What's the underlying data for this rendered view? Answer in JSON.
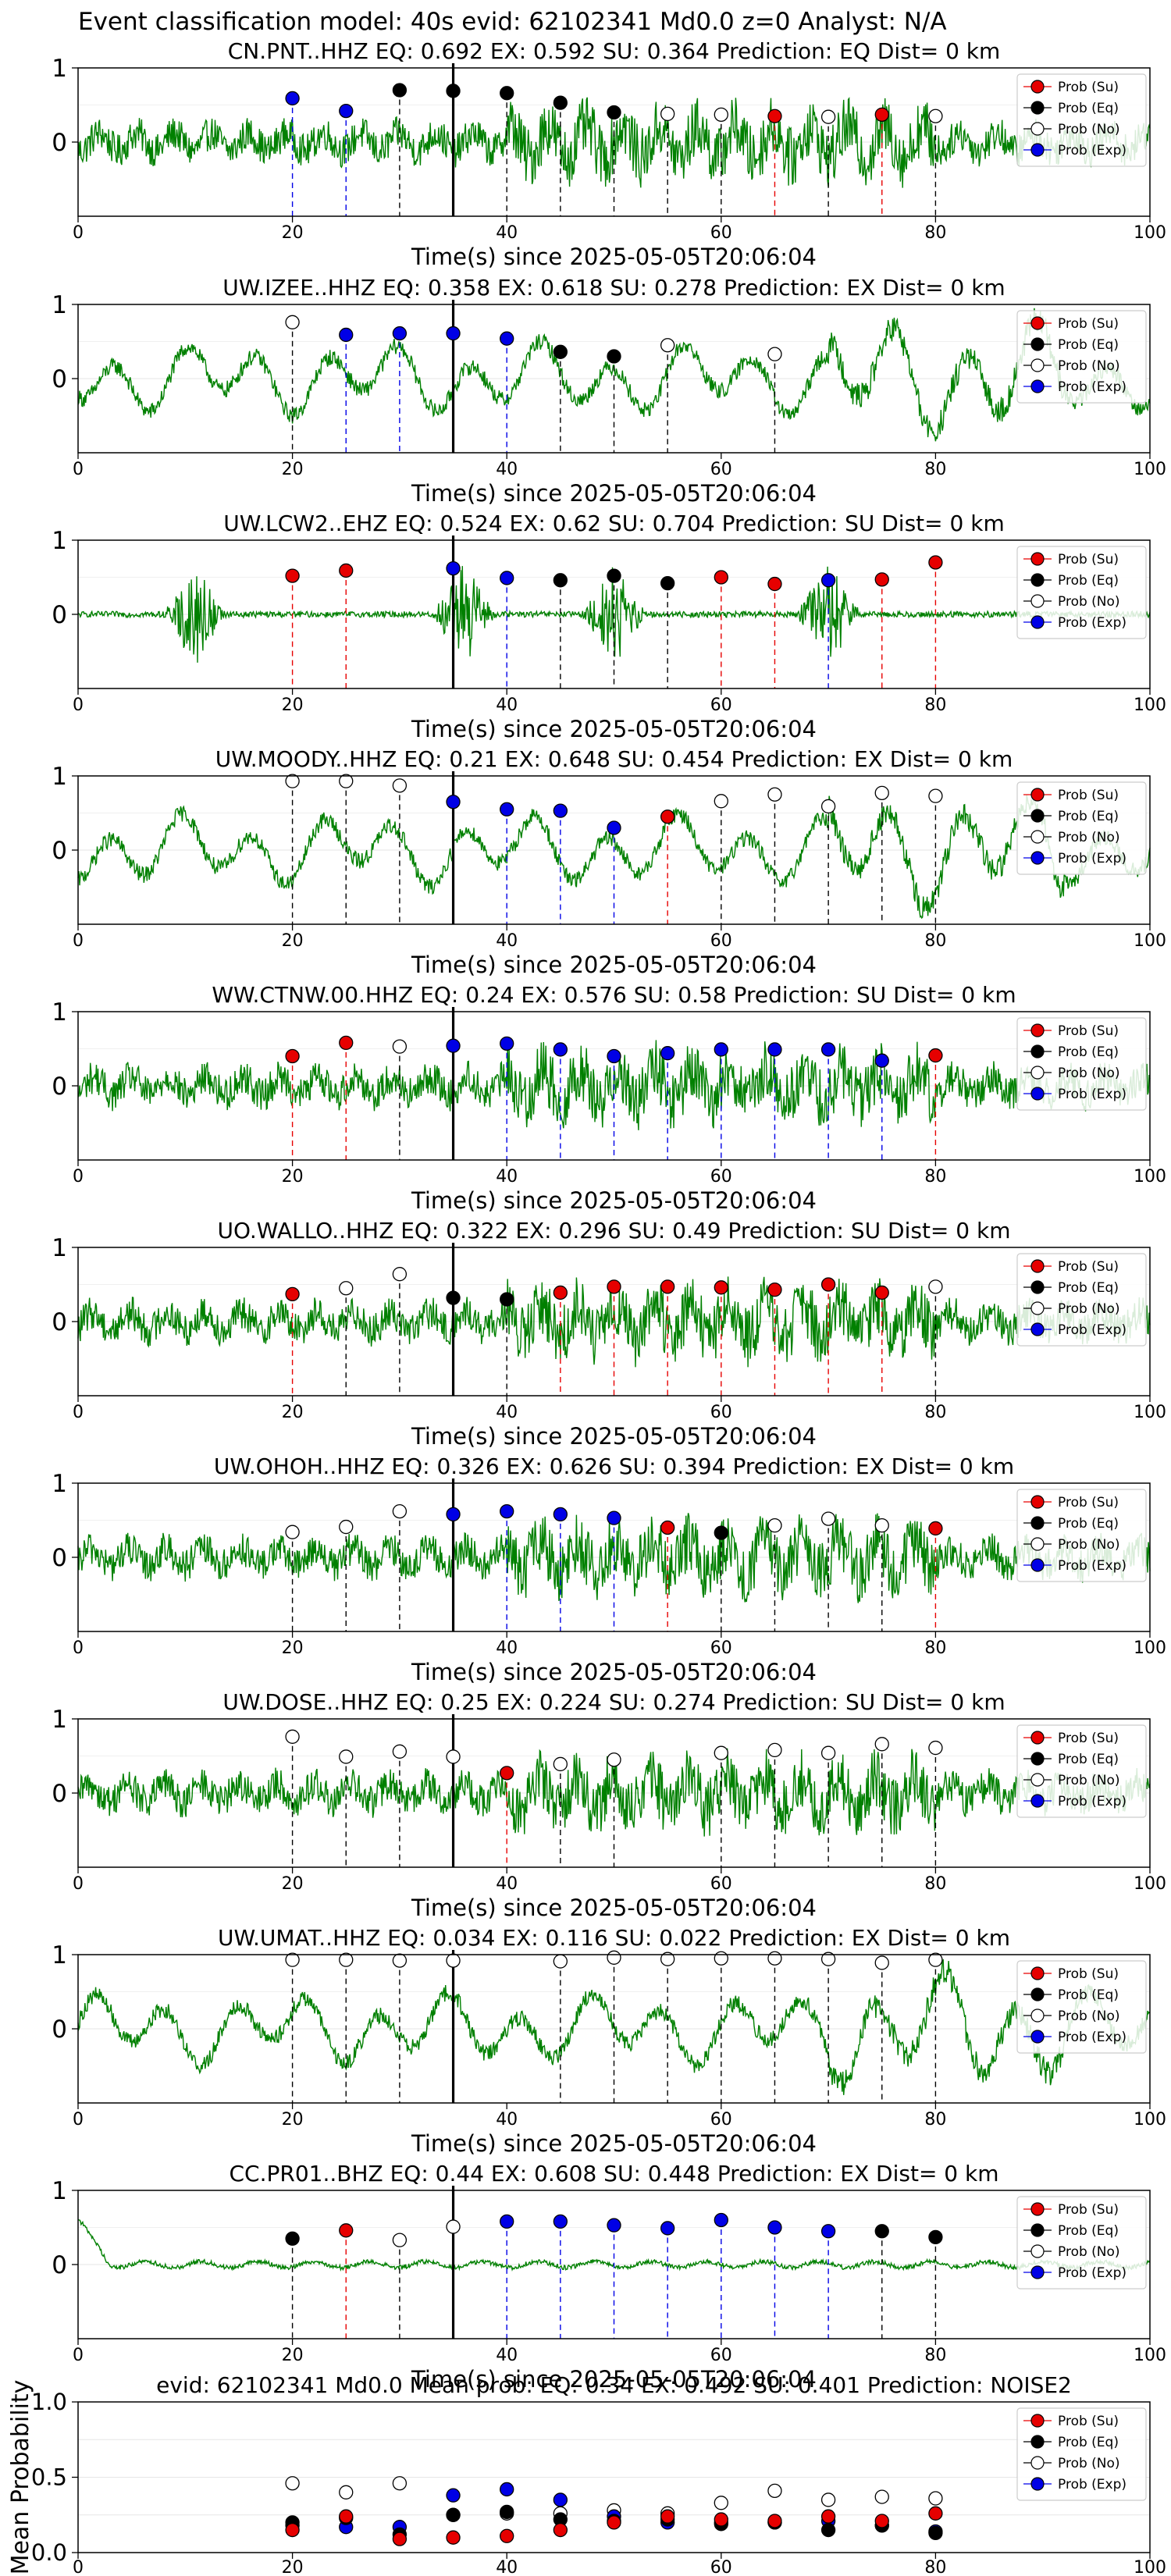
{
  "figure_title": "Event classification model: 40s evid: 62102341 Md0.0 z=0 Analyst: N/A",
  "colors": {
    "waveform": "#008000",
    "su": "#e60000",
    "eq": "#000000",
    "no": "#ffffff",
    "exp": "#0000e6",
    "grid": "#e6e6e6"
  },
  "legend_labels": {
    "su": "Prob (Su)",
    "eq": "Prob (Eq)",
    "no": "Prob (No)",
    "exp": "Prob (Exp)"
  },
  "chart_data": [
    {
      "type": "scatter",
      "title": "CN.PNT..HHZ   EQ: 0.692  EX: 0.592  SU: 0.364   Prediction: EQ    Dist= 0 km",
      "xlabel": "Time(s) since 2025-05-05T20:06:04",
      "xlim": [
        0,
        100
      ],
      "ylim": [
        -1,
        1
      ],
      "xticks": [
        "0",
        "20",
        "40",
        "60",
        "80",
        "100"
      ],
      "yticks": [
        "1",
        "0"
      ],
      "legend": "top-right",
      "trace": "noisy",
      "event_line_x": 35,
      "points": [
        {
          "x": 20,
          "y": 0.59,
          "cls": "exp"
        },
        {
          "x": 25,
          "y": 0.42,
          "cls": "exp"
        },
        {
          "x": 30,
          "y": 0.7,
          "cls": "eq"
        },
        {
          "x": 35,
          "y": 0.69,
          "cls": "eq"
        },
        {
          "x": 40,
          "y": 0.66,
          "cls": "eq"
        },
        {
          "x": 45,
          "y": 0.53,
          "cls": "eq"
        },
        {
          "x": 50,
          "y": 0.4,
          "cls": "eq"
        },
        {
          "x": 55,
          "y": 0.38,
          "cls": "no"
        },
        {
          "x": 60,
          "y": 0.37,
          "cls": "no"
        },
        {
          "x": 65,
          "y": 0.35,
          "cls": "su"
        },
        {
          "x": 70,
          "y": 0.34,
          "cls": "no"
        },
        {
          "x": 75,
          "y": 0.37,
          "cls": "su"
        },
        {
          "x": 80,
          "y": 0.35,
          "cls": "no"
        }
      ]
    },
    {
      "type": "scatter",
      "title": "UW.IZEE..HHZ   EQ: 0.358  EX: 0.618  SU: 0.278   Prediction: EX    Dist= 0 km",
      "xlabel": "Time(s) since 2025-05-05T20:06:04",
      "xlim": [
        0,
        100
      ],
      "ylim": [
        -1,
        1
      ],
      "xticks": [
        "0",
        "20",
        "40",
        "60",
        "80",
        "100"
      ],
      "yticks": [
        "1",
        "0"
      ],
      "legend": "top-right",
      "trace": "wavy",
      "event_line_x": 35,
      "points": [
        {
          "x": 20,
          "y": 0.76,
          "cls": "no"
        },
        {
          "x": 25,
          "y": 0.59,
          "cls": "exp"
        },
        {
          "x": 30,
          "y": 0.61,
          "cls": "exp"
        },
        {
          "x": 35,
          "y": 0.61,
          "cls": "exp"
        },
        {
          "x": 40,
          "y": 0.54,
          "cls": "exp"
        },
        {
          "x": 45,
          "y": 0.36,
          "cls": "eq"
        },
        {
          "x": 50,
          "y": 0.3,
          "cls": "eq"
        },
        {
          "x": 55,
          "y": 0.45,
          "cls": "no"
        },
        {
          "x": 65,
          "y": 0.33,
          "cls": "no"
        }
      ]
    },
    {
      "type": "scatter",
      "title": "UW.LCW2..EHZ   EQ: 0.524  EX: 0.62  SU: 0.704   Prediction: SU    Dist= 0 km",
      "xlabel": "Time(s) since 2025-05-05T20:06:04",
      "xlim": [
        0,
        100
      ],
      "ylim": [
        -1,
        1
      ],
      "xticks": [
        "0",
        "20",
        "40",
        "60",
        "80",
        "100"
      ],
      "yticks": [
        "1",
        "0"
      ],
      "legend": "top-right",
      "trace": "burst",
      "event_line_x": 35,
      "points": [
        {
          "x": 20,
          "y": 0.52,
          "cls": "su"
        },
        {
          "x": 25,
          "y": 0.59,
          "cls": "su"
        },
        {
          "x": 35,
          "y": 0.62,
          "cls": "exp"
        },
        {
          "x": 40,
          "y": 0.49,
          "cls": "exp"
        },
        {
          "x": 45,
          "y": 0.46,
          "cls": "eq"
        },
        {
          "x": 50,
          "y": 0.52,
          "cls": "eq"
        },
        {
          "x": 55,
          "y": 0.42,
          "cls": "eq"
        },
        {
          "x": 60,
          "y": 0.5,
          "cls": "su"
        },
        {
          "x": 65,
          "y": 0.41,
          "cls": "su"
        },
        {
          "x": 70,
          "y": 0.46,
          "cls": "exp"
        },
        {
          "x": 75,
          "y": 0.47,
          "cls": "su"
        },
        {
          "x": 80,
          "y": 0.7,
          "cls": "su"
        }
      ]
    },
    {
      "type": "scatter",
      "title": "UW.MOODY..HHZ   EQ: 0.21  EX: 0.648  SU: 0.454   Prediction: EX    Dist= 0 km",
      "xlabel": "Time(s) since 2025-05-05T20:06:04",
      "xlim": [
        0,
        100
      ],
      "ylim": [
        -1,
        1
      ],
      "xticks": [
        "0",
        "20",
        "40",
        "60",
        "80",
        "100"
      ],
      "yticks": [
        "1",
        "0"
      ],
      "legend": "top-right",
      "trace": "wavy",
      "event_line_x": 35,
      "points": [
        {
          "x": 20,
          "y": 0.93,
          "cls": "no"
        },
        {
          "x": 25,
          "y": 0.93,
          "cls": "no"
        },
        {
          "x": 30,
          "y": 0.87,
          "cls": "no"
        },
        {
          "x": 35,
          "y": 0.65,
          "cls": "exp"
        },
        {
          "x": 40,
          "y": 0.55,
          "cls": "exp"
        },
        {
          "x": 45,
          "y": 0.53,
          "cls": "exp"
        },
        {
          "x": 50,
          "y": 0.3,
          "cls": "exp"
        },
        {
          "x": 55,
          "y": 0.45,
          "cls": "su"
        },
        {
          "x": 60,
          "y": 0.66,
          "cls": "no"
        },
        {
          "x": 65,
          "y": 0.75,
          "cls": "no"
        },
        {
          "x": 70,
          "y": 0.59,
          "cls": "no"
        },
        {
          "x": 75,
          "y": 0.77,
          "cls": "no"
        },
        {
          "x": 80,
          "y": 0.73,
          "cls": "no"
        }
      ]
    },
    {
      "type": "scatter",
      "title": "WW.CTNW.00.HHZ   EQ: 0.24  EX: 0.576  SU: 0.58    Prediction: SU    Dist= 0 km",
      "xlabel": "Time(s) since 2025-05-05T20:06:04",
      "xlim": [
        0,
        100
      ],
      "ylim": [
        -1,
        1
      ],
      "xticks": [
        "0",
        "20",
        "40",
        "60",
        "80",
        "100"
      ],
      "yticks": [
        "1",
        "0"
      ],
      "legend": "top-right",
      "trace": "noisy",
      "event_line_x": 35,
      "points": [
        {
          "x": 20,
          "y": 0.4,
          "cls": "su"
        },
        {
          "x": 25,
          "y": 0.58,
          "cls": "su"
        },
        {
          "x": 30,
          "y": 0.53,
          "cls": "no"
        },
        {
          "x": 35,
          "y": 0.54,
          "cls": "exp"
        },
        {
          "x": 40,
          "y": 0.57,
          "cls": "exp"
        },
        {
          "x": 45,
          "y": 0.49,
          "cls": "exp"
        },
        {
          "x": 50,
          "y": 0.4,
          "cls": "exp"
        },
        {
          "x": 55,
          "y": 0.44,
          "cls": "exp"
        },
        {
          "x": 60,
          "y": 0.49,
          "cls": "exp"
        },
        {
          "x": 65,
          "y": 0.49,
          "cls": "exp"
        },
        {
          "x": 70,
          "y": 0.49,
          "cls": "exp"
        },
        {
          "x": 75,
          "y": 0.34,
          "cls": "exp"
        },
        {
          "x": 80,
          "y": 0.41,
          "cls": "su"
        }
      ]
    },
    {
      "type": "scatter",
      "title": "UO.WALLO..HHZ   EQ: 0.322  EX: 0.296  SU: 0.49    Prediction: SU    Dist= 0 km",
      "xlabel": "Time(s) since 2025-05-05T20:06:04",
      "xlim": [
        0,
        100
      ],
      "ylim": [
        -1,
        1
      ],
      "xticks": [
        "0",
        "20",
        "40",
        "60",
        "80",
        "100"
      ],
      "yticks": [
        "1",
        "0"
      ],
      "legend": "top-right",
      "trace": "noisy",
      "event_line_x": 35,
      "points": [
        {
          "x": 20,
          "y": 0.37,
          "cls": "su"
        },
        {
          "x": 25,
          "y": 0.45,
          "cls": "no"
        },
        {
          "x": 30,
          "y": 0.64,
          "cls": "no"
        },
        {
          "x": 35,
          "y": 0.32,
          "cls": "eq"
        },
        {
          "x": 40,
          "y": 0.3,
          "cls": "eq"
        },
        {
          "x": 45,
          "y": 0.39,
          "cls": "su"
        },
        {
          "x": 50,
          "y": 0.47,
          "cls": "su"
        },
        {
          "x": 55,
          "y": 0.47,
          "cls": "su"
        },
        {
          "x": 60,
          "y": 0.46,
          "cls": "su"
        },
        {
          "x": 65,
          "y": 0.43,
          "cls": "su"
        },
        {
          "x": 70,
          "y": 0.5,
          "cls": "su"
        },
        {
          "x": 75,
          "y": 0.39,
          "cls": "su"
        },
        {
          "x": 80,
          "y": 0.47,
          "cls": "no"
        }
      ]
    },
    {
      "type": "scatter",
      "title": "UW.OHOH..HHZ   EQ: 0.326  EX: 0.626  SU: 0.394   Prediction: EX    Dist= 0 km",
      "xlabel": "Time(s) since 2025-05-05T20:06:04",
      "xlim": [
        0,
        100
      ],
      "ylim": [
        -1,
        1
      ],
      "xticks": [
        "0",
        "20",
        "40",
        "60",
        "80",
        "100"
      ],
      "yticks": [
        "1",
        "0"
      ],
      "legend": "top-right",
      "trace": "noisy",
      "event_line_x": 35,
      "points": [
        {
          "x": 20,
          "y": 0.34,
          "cls": "no"
        },
        {
          "x": 25,
          "y": 0.41,
          "cls": "no"
        },
        {
          "x": 30,
          "y": 0.62,
          "cls": "no"
        },
        {
          "x": 35,
          "y": 0.58,
          "cls": "exp"
        },
        {
          "x": 40,
          "y": 0.62,
          "cls": "exp"
        },
        {
          "x": 45,
          "y": 0.58,
          "cls": "exp"
        },
        {
          "x": 50,
          "y": 0.53,
          "cls": "exp"
        },
        {
          "x": 55,
          "y": 0.4,
          "cls": "su"
        },
        {
          "x": 60,
          "y": 0.33,
          "cls": "eq"
        },
        {
          "x": 65,
          "y": 0.43,
          "cls": "no"
        },
        {
          "x": 70,
          "y": 0.52,
          "cls": "no"
        },
        {
          "x": 75,
          "y": 0.43,
          "cls": "no"
        },
        {
          "x": 80,
          "y": 0.39,
          "cls": "su"
        }
      ]
    },
    {
      "type": "scatter",
      "title": "UW.DOSE..HHZ   EQ: 0.25  EX: 0.224  SU: 0.274   Prediction: SU    Dist= 0 km",
      "xlabel": "Time(s) since 2025-05-05T20:06:04",
      "xlim": [
        0,
        100
      ],
      "ylim": [
        -1,
        1
      ],
      "xticks": [
        "0",
        "20",
        "40",
        "60",
        "80",
        "100"
      ],
      "yticks": [
        "1",
        "0"
      ],
      "legend": "top-right",
      "trace": "noisy",
      "event_line_x": 35,
      "points": [
        {
          "x": 20,
          "y": 0.76,
          "cls": "no"
        },
        {
          "x": 25,
          "y": 0.49,
          "cls": "no"
        },
        {
          "x": 30,
          "y": 0.56,
          "cls": "no"
        },
        {
          "x": 35,
          "y": 0.49,
          "cls": "no"
        },
        {
          "x": 40,
          "y": 0.27,
          "cls": "su"
        },
        {
          "x": 45,
          "y": 0.39,
          "cls": "no"
        },
        {
          "x": 50,
          "y": 0.45,
          "cls": "no"
        },
        {
          "x": 60,
          "y": 0.54,
          "cls": "no"
        },
        {
          "x": 65,
          "y": 0.58,
          "cls": "no"
        },
        {
          "x": 70,
          "y": 0.54,
          "cls": "no"
        },
        {
          "x": 75,
          "y": 0.66,
          "cls": "no"
        },
        {
          "x": 80,
          "y": 0.61,
          "cls": "no"
        }
      ]
    },
    {
      "type": "scatter",
      "title": "UW.UMAT..HHZ   EQ: 0.034  EX: 0.116  SU: 0.022   Prediction: EX    Dist= 0 km",
      "xlabel": "Time(s) since 2025-05-05T20:06:04",
      "xlim": [
        0,
        100
      ],
      "ylim": [
        -1,
        1
      ],
      "xticks": [
        "0",
        "20",
        "40",
        "60",
        "80",
        "100"
      ],
      "yticks": [
        "1",
        "0"
      ],
      "legend": "top-right",
      "trace": "wavy",
      "event_line_x": 35,
      "points": [
        {
          "x": 20,
          "y": 0.93,
          "cls": "no"
        },
        {
          "x": 25,
          "y": 0.93,
          "cls": "no"
        },
        {
          "x": 30,
          "y": 0.92,
          "cls": "no"
        },
        {
          "x": 35,
          "y": 0.92,
          "cls": "no"
        },
        {
          "x": 45,
          "y": 0.91,
          "cls": "no"
        },
        {
          "x": 50,
          "y": 0.96,
          "cls": "no"
        },
        {
          "x": 55,
          "y": 0.94,
          "cls": "no"
        },
        {
          "x": 60,
          "y": 0.95,
          "cls": "no"
        },
        {
          "x": 65,
          "y": 0.95,
          "cls": "no"
        },
        {
          "x": 70,
          "y": 0.94,
          "cls": "no"
        },
        {
          "x": 75,
          "y": 0.89,
          "cls": "no"
        },
        {
          "x": 80,
          "y": 0.93,
          "cls": "no"
        }
      ]
    },
    {
      "type": "scatter",
      "title": "CC.PR01..BHZ   EQ: 0.44  EX: 0.608  SU: 0.448   Prediction: EX    Dist= 0 km",
      "xlabel": "Time(s) since 2025-05-05T20:06:04",
      "xlim": [
        0,
        100
      ],
      "ylim": [
        -1,
        1
      ],
      "xticks": [
        "0",
        "20",
        "40",
        "60",
        "80",
        "100"
      ],
      "yticks": [
        "1",
        "0"
      ],
      "legend": "top-right",
      "trace": "quiet",
      "event_line_x": 35,
      "points": [
        {
          "x": 20,
          "y": 0.35,
          "cls": "eq"
        },
        {
          "x": 25,
          "y": 0.46,
          "cls": "su"
        },
        {
          "x": 30,
          "y": 0.33,
          "cls": "no"
        },
        {
          "x": 35,
          "y": 0.51,
          "cls": "no"
        },
        {
          "x": 40,
          "y": 0.58,
          "cls": "exp"
        },
        {
          "x": 45,
          "y": 0.58,
          "cls": "exp"
        },
        {
          "x": 50,
          "y": 0.53,
          "cls": "exp"
        },
        {
          "x": 55,
          "y": 0.49,
          "cls": "exp"
        },
        {
          "x": 60,
          "y": 0.6,
          "cls": "exp"
        },
        {
          "x": 65,
          "y": 0.5,
          "cls": "exp"
        },
        {
          "x": 70,
          "y": 0.45,
          "cls": "exp"
        },
        {
          "x": 75,
          "y": 0.45,
          "cls": "eq"
        },
        {
          "x": 80,
          "y": 0.37,
          "cls": "eq"
        }
      ]
    },
    {
      "type": "scatter",
      "title": "evid: 62102341  Md0.0   Mean prob:   EQ: 0.34  EX: 0.492  SU: 0.401   Prediction: NOISE2",
      "ylabel": "Mean Probability",
      "xlim": [
        0,
        100
      ],
      "ylim": [
        0,
        1
      ],
      "xticks": [
        "0",
        "20",
        "40",
        "60",
        "80",
        "100"
      ],
      "yticks": [
        "0.0",
        "0.5",
        "1.0"
      ],
      "yticks_values": [
        0,
        0.5,
        1
      ],
      "legend": "top-right",
      "grid": true,
      "series": [
        {
          "cls": "no",
          "x": [
            20,
            25,
            30,
            35,
            40,
            45,
            50,
            55,
            60,
            65,
            70,
            75,
            80
          ],
          "y": [
            0.46,
            0.4,
            0.46,
            0.25,
            0.26,
            0.26,
            0.28,
            0.26,
            0.33,
            0.41,
            0.35,
            0.37,
            0.36
          ]
        },
        {
          "cls": "exp",
          "x": [
            20,
            25,
            30,
            35,
            40,
            45,
            50,
            55,
            60,
            65,
            70,
            75,
            80
          ],
          "y": [
            0.18,
            0.17,
            0.17,
            0.38,
            0.42,
            0.35,
            0.24,
            0.2,
            0.2,
            0.2,
            0.21,
            0.18,
            0.14
          ]
        },
        {
          "cls": "eq",
          "x": [
            20,
            25,
            30,
            35,
            40,
            45,
            50,
            55,
            60,
            65,
            70,
            75,
            80
          ],
          "y": [
            0.2,
            0.23,
            0.12,
            0.25,
            0.27,
            0.22,
            0.21,
            0.22,
            0.19,
            0.2,
            0.15,
            0.18,
            0.13
          ]
        },
        {
          "cls": "su",
          "x": [
            20,
            25,
            30,
            35,
            40,
            45,
            50,
            55,
            60,
            65,
            70,
            75,
            80
          ],
          "y": [
            0.15,
            0.24,
            0.09,
            0.1,
            0.11,
            0.15,
            0.2,
            0.24,
            0.22,
            0.21,
            0.24,
            0.21,
            0.26
          ]
        }
      ]
    }
  ]
}
